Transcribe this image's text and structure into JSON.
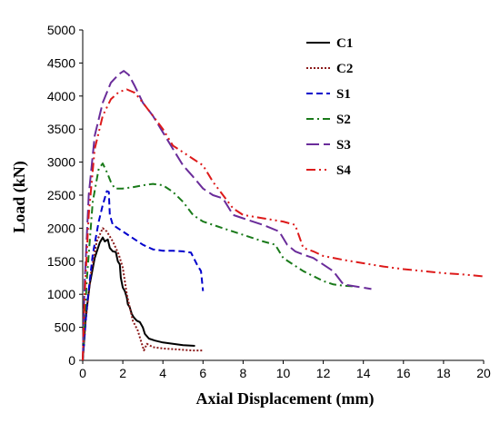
{
  "chart_data": {
    "type": "line",
    "xlabel": "Axial Displacement (mm)",
    "ylabel": "Load (kN)",
    "xlim": [
      0,
      20
    ],
    "ylim": [
      0,
      5000
    ],
    "xticks": [
      0,
      2,
      4,
      6,
      8,
      10,
      12,
      14,
      16,
      18,
      20
    ],
    "yticks": [
      0,
      500,
      1000,
      1500,
      2000,
      2500,
      3000,
      3500,
      4000,
      4500,
      5000
    ],
    "grid": false,
    "legend_position": "top-right inside",
    "series": [
      {
        "name": "C1",
        "color": "#000000",
        "dash": "solid",
        "points": [
          [
            0,
            0
          ],
          [
            0.15,
            650
          ],
          [
            0.35,
            1150
          ],
          [
            0.6,
            1550
          ],
          [
            0.85,
            1780
          ],
          [
            1.0,
            1860
          ],
          [
            1.1,
            1800
          ],
          [
            1.25,
            1830
          ],
          [
            1.35,
            1700
          ],
          [
            1.5,
            1650
          ],
          [
            1.65,
            1640
          ],
          [
            1.75,
            1500
          ],
          [
            1.85,
            1450
          ],
          [
            1.9,
            1250
          ],
          [
            2.0,
            1100
          ],
          [
            2.1,
            1050
          ],
          [
            2.2,
            950
          ],
          [
            2.25,
            850
          ],
          [
            2.35,
            800
          ],
          [
            2.45,
            700
          ],
          [
            2.55,
            650
          ],
          [
            2.7,
            600
          ],
          [
            2.85,
            580
          ],
          [
            3.0,
            500
          ],
          [
            3.1,
            400
          ],
          [
            3.3,
            330
          ],
          [
            3.6,
            300
          ],
          [
            4.0,
            270
          ],
          [
            4.5,
            250
          ],
          [
            5.0,
            230
          ],
          [
            5.6,
            220
          ]
        ]
      },
      {
        "name": "C2",
        "color": "#8b1a1a",
        "dash": "dotted",
        "points": [
          [
            0,
            0
          ],
          [
            0.15,
            600
          ],
          [
            0.4,
            1300
          ],
          [
            0.7,
            1800
          ],
          [
            1.0,
            2000
          ],
          [
            1.2,
            1950
          ],
          [
            1.5,
            1800
          ],
          [
            1.8,
            1600
          ],
          [
            2.0,
            1400
          ],
          [
            2.2,
            1000
          ],
          [
            2.5,
            600
          ],
          [
            2.75,
            450
          ],
          [
            2.9,
            300
          ],
          [
            3.05,
            150
          ],
          [
            3.2,
            250
          ],
          [
            3.5,
            200
          ],
          [
            4.0,
            180
          ],
          [
            4.5,
            170
          ],
          [
            5.0,
            160
          ],
          [
            5.5,
            150
          ],
          [
            6.0,
            150
          ]
        ]
      },
      {
        "name": "S1",
        "color": "#0000cc",
        "dash": "dashed",
        "points": [
          [
            0,
            0
          ],
          [
            0.2,
            800
          ],
          [
            0.5,
            1600
          ],
          [
            0.8,
            2100
          ],
          [
            1.0,
            2350
          ],
          [
            1.2,
            2560
          ],
          [
            1.3,
            2550
          ],
          [
            1.35,
            2200
          ],
          [
            1.5,
            2050
          ],
          [
            2.0,
            1950
          ],
          [
            2.5,
            1850
          ],
          [
            3.0,
            1750
          ],
          [
            3.5,
            1680
          ],
          [
            4.0,
            1660
          ],
          [
            4.5,
            1660
          ],
          [
            5.0,
            1650
          ],
          [
            5.4,
            1630
          ],
          [
            5.7,
            1450
          ],
          [
            5.9,
            1350
          ],
          [
            6.0,
            1050
          ]
        ]
      },
      {
        "name": "S2",
        "color": "#1a7a1a",
        "dash": "dashdot",
        "points": [
          [
            0,
            0
          ],
          [
            0.2,
            1200
          ],
          [
            0.5,
            2400
          ],
          [
            0.8,
            2900
          ],
          [
            1.0,
            2980
          ],
          [
            1.2,
            2850
          ],
          [
            1.4,
            2700
          ],
          [
            1.6,
            2600
          ],
          [
            2.0,
            2600
          ],
          [
            2.5,
            2620
          ],
          [
            3.0,
            2650
          ],
          [
            3.5,
            2670
          ],
          [
            4.0,
            2650
          ],
          [
            4.5,
            2550
          ],
          [
            5.0,
            2400
          ],
          [
            5.5,
            2200
          ],
          [
            6.0,
            2100
          ],
          [
            7.0,
            2000
          ],
          [
            8.0,
            1900
          ],
          [
            9.0,
            1800
          ],
          [
            9.6,
            1750
          ],
          [
            10.0,
            1550
          ],
          [
            10.5,
            1450
          ],
          [
            11.0,
            1350
          ],
          [
            12.0,
            1200
          ],
          [
            12.5,
            1150
          ],
          [
            13.0,
            1130
          ],
          [
            13.5,
            1120
          ]
        ]
      },
      {
        "name": "S3",
        "color": "#6a2c9a",
        "dash": "longdash",
        "points": [
          [
            0,
            0
          ],
          [
            0.1,
            1200
          ],
          [
            0.3,
            2500
          ],
          [
            0.6,
            3400
          ],
          [
            1.0,
            3900
          ],
          [
            1.4,
            4200
          ],
          [
            1.8,
            4330
          ],
          [
            2.05,
            4380
          ],
          [
            2.3,
            4320
          ],
          [
            2.6,
            4150
          ],
          [
            3.0,
            3900
          ],
          [
            3.5,
            3700
          ],
          [
            4.0,
            3450
          ],
          [
            4.5,
            3200
          ],
          [
            5.0,
            2950
          ],
          [
            5.5,
            2780
          ],
          [
            6.0,
            2600
          ],
          [
            6.5,
            2500
          ],
          [
            7.0,
            2450
          ],
          [
            7.5,
            2200
          ],
          [
            8.0,
            2150
          ],
          [
            9.0,
            2050
          ],
          [
            9.8,
            1950
          ],
          [
            10.2,
            1750
          ],
          [
            10.6,
            1650
          ],
          [
            11.0,
            1600
          ],
          [
            11.5,
            1550
          ],
          [
            12.0,
            1450
          ],
          [
            12.5,
            1350
          ],
          [
            13.0,
            1150
          ],
          [
            14.0,
            1100
          ],
          [
            14.4,
            1080
          ]
        ]
      },
      {
        "name": "S4",
        "color": "#dd1a1a",
        "dash": "dashdotdot",
        "points": [
          [
            0,
            0
          ],
          [
            0.1,
            1000
          ],
          [
            0.3,
            2200
          ],
          [
            0.6,
            3200
          ],
          [
            1.0,
            3700
          ],
          [
            1.4,
            3950
          ],
          [
            1.8,
            4060
          ],
          [
            2.2,
            4100
          ],
          [
            2.6,
            4050
          ],
          [
            3.0,
            3900
          ],
          [
            3.5,
            3700
          ],
          [
            4.0,
            3500
          ],
          [
            4.5,
            3250
          ],
          [
            5.0,
            3150
          ],
          [
            5.5,
            3050
          ],
          [
            6.0,
            2950
          ],
          [
            6.5,
            2700
          ],
          [
            7.0,
            2500
          ],
          [
            7.5,
            2300
          ],
          [
            8.0,
            2200
          ],
          [
            9.0,
            2150
          ],
          [
            10.0,
            2100
          ],
          [
            10.6,
            2050
          ],
          [
            11.0,
            1700
          ],
          [
            11.5,
            1650
          ],
          [
            12.0,
            1580
          ],
          [
            13.0,
            1520
          ],
          [
            14.0,
            1470
          ],
          [
            15.0,
            1420
          ],
          [
            16.0,
            1380
          ],
          [
            17.0,
            1350
          ],
          [
            18.0,
            1320
          ],
          [
            19.0,
            1300
          ],
          [
            20.0,
            1270
          ]
        ]
      }
    ]
  }
}
